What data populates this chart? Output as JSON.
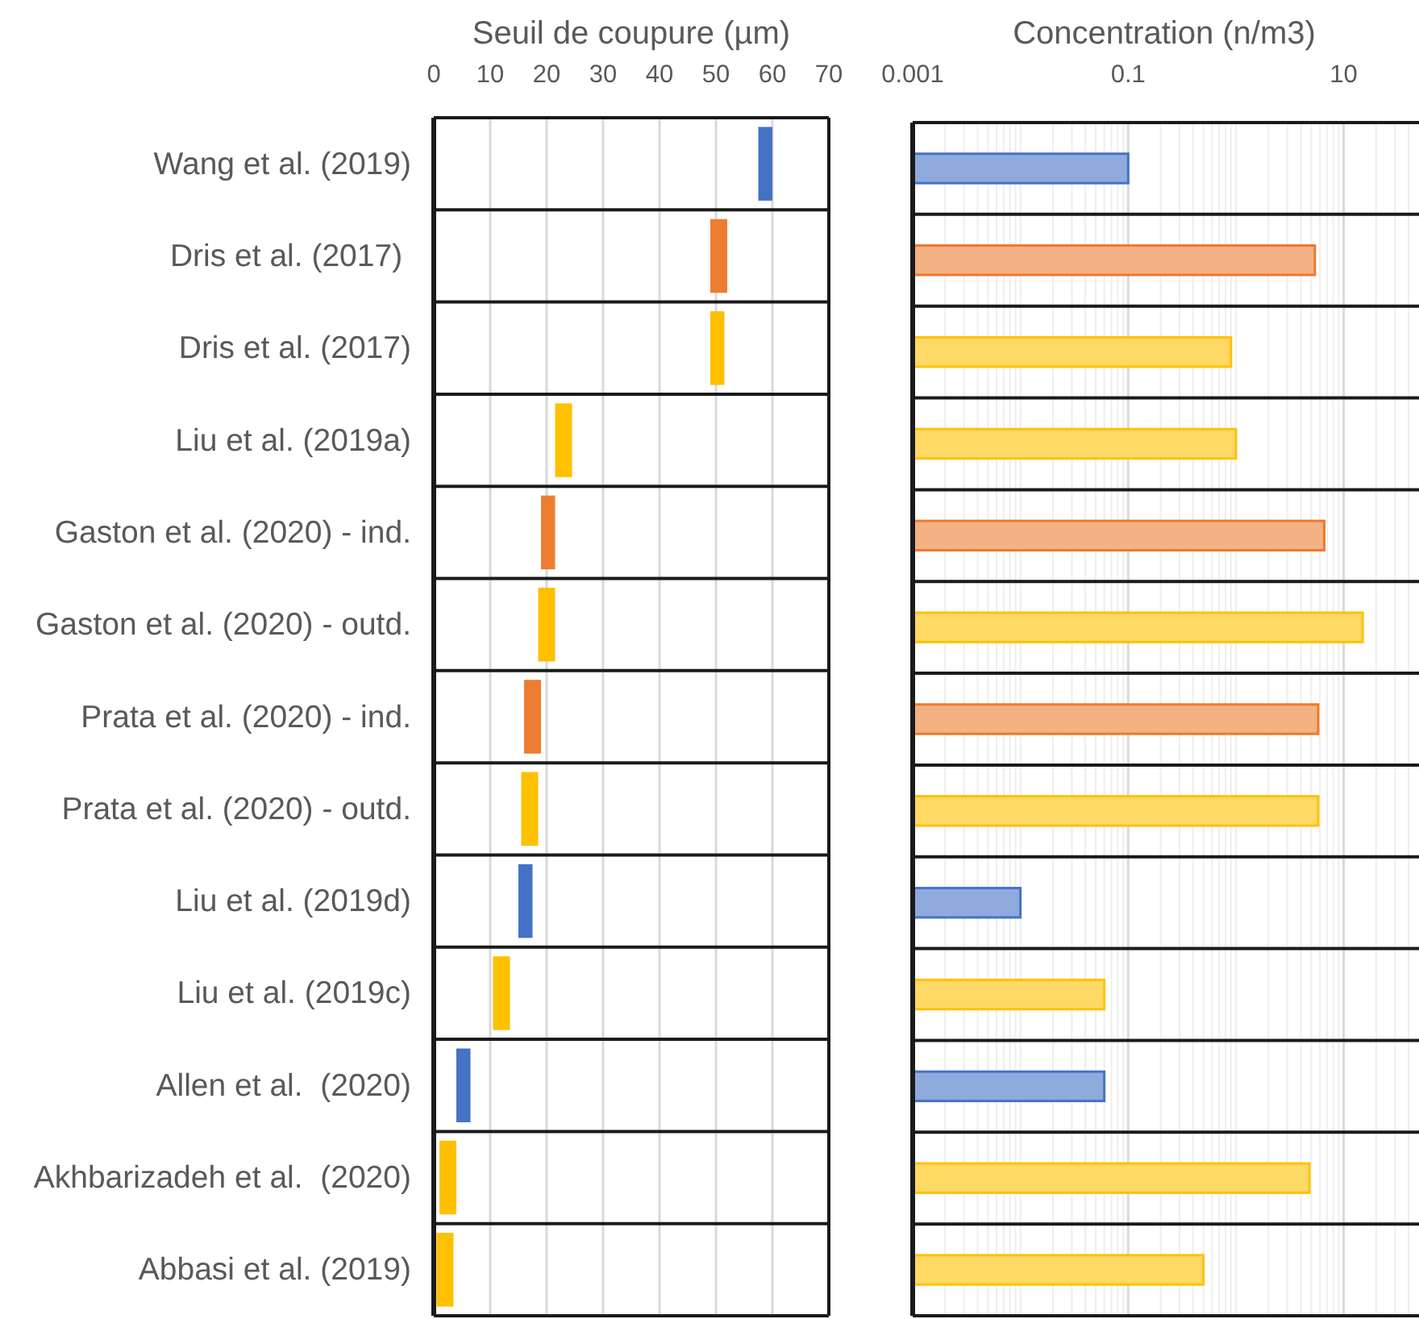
{
  "chart_data": [
    {
      "type": "bar",
      "orientation": "horizontal",
      "xlabel": "Seuil de coupure (µm)",
      "categories": [
        "Wang et al. (2019)",
        "Dris et al. (2017) ",
        "Dris et al. (2017)",
        "Liu et al. (2019a)",
        "Gaston et al. (2020) - ind.",
        "Gaston et al. (2020) - outd.",
        "Prata et al. (2020) - ind.",
        "Prata et al. (2020) - outd.",
        "Liu et al. (2019d)",
        "Liu et al. (2019c)",
        "Allen et al.  (2020)",
        "Akhbarizadeh et al.  (2020)",
        "Abbasi et al. (2019)"
      ],
      "base": [
        57.5,
        49,
        49,
        21.5,
        19,
        18.5,
        16,
        15.5,
        15,
        10.5,
        4,
        1,
        0.5
      ],
      "values": [
        2.5,
        3,
        2.5,
        3,
        2.5,
        3,
        3,
        3,
        2.5,
        3,
        2.5,
        3,
        3
      ],
      "colors": [
        "#4472c4",
        "#ed7d31",
        "#ffc000",
        "#ffc000",
        "#ed7d31",
        "#ffc000",
        "#ed7d31",
        "#ffc000",
        "#4472c4",
        "#ffc000",
        "#4472c4",
        "#ffc000",
        "#ffc000"
      ],
      "xlim": [
        0,
        70
      ],
      "xticks": [
        0,
        10,
        20,
        30,
        40,
        50,
        60,
        70
      ],
      "grid": true
    },
    {
      "type": "bar",
      "orientation": "horizontal",
      "xlabel": "Concentration (n/m3)",
      "categories": [
        null,
        null,
        null,
        null,
        null,
        null,
        null,
        null,
        null,
        null,
        null,
        null,
        null
      ],
      "values": [
        0.1,
        5.4,
        0.9,
        1,
        6.6,
        15,
        5.8,
        5.8,
        0.01,
        0.06,
        0.06,
        4.8,
        0.5
      ],
      "colors": [
        "#8faadc",
        "#f4b183",
        "#ffd966",
        "#ffd966",
        "#f4b183",
        "#ffd966",
        "#f4b183",
        "#ffd966",
        "#8faadc",
        "#ffd966",
        "#8faadc",
        "#ffd966",
        "#ffd966"
      ],
      "log": "x",
      "xlim": [
        0.001,
        50
      ],
      "xticks": [
        0.001,
        {
          "value": 0.002,
          "label": null
        },
        {
          "value": 0.003,
          "label": null
        },
        {
          "value": 0.004,
          "label": null
        },
        {
          "value": 0.005,
          "label": null
        },
        {
          "value": 0.006,
          "label": null
        },
        {
          "value": 0.007,
          "label": null
        },
        {
          "value": 0.008,
          "label": null
        },
        {
          "value": 0.009,
          "label": null
        },
        {
          "value": 0.01,
          "label": null
        },
        {
          "value": 0.02,
          "label": null
        },
        {
          "value": 0.03,
          "label": null
        },
        {
          "value": 0.04,
          "label": null
        },
        {
          "value": 0.05,
          "label": null
        },
        {
          "value": 0.06,
          "label": null
        },
        {
          "value": 0.07,
          "label": null
        },
        {
          "value": 0.08,
          "label": null
        },
        {
          "value": 0.09,
          "label": null
        },
        0.1,
        {
          "value": 0.2,
          "label": null
        },
        {
          "value": 0.3,
          "label": null
        },
        {
          "value": 0.4,
          "label": null
        },
        {
          "value": 0.5,
          "label": null
        },
        {
          "value": 0.6,
          "label": null
        },
        {
          "value": 0.7,
          "label": null
        },
        {
          "value": 0.8,
          "label": null
        },
        {
          "value": 0.9,
          "label": null
        },
        {
          "value": 1,
          "label": null
        },
        {
          "value": 2,
          "label": null
        },
        {
          "value": 3,
          "label": null
        },
        {
          "value": 4,
          "label": null
        },
        {
          "value": 5,
          "label": null
        },
        {
          "value": 6,
          "label": null
        },
        {
          "value": 7,
          "label": null
        },
        {
          "value": 8,
          "label": null
        },
        {
          "value": 9,
          "label": null
        },
        10,
        {
          "value": 20,
          "label": null
        },
        {
          "value": 30,
          "label": null
        },
        {
          "value": 40,
          "label": null
        }
      ],
      "grid": true
    }
  ]
}
